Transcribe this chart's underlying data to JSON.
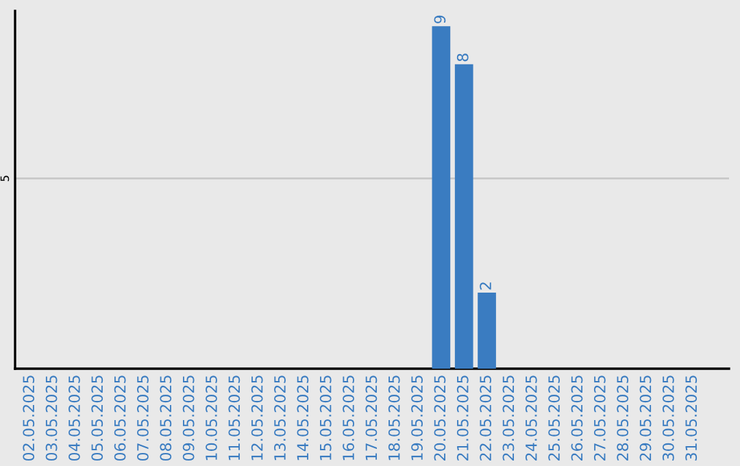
{
  "chart_data": {
    "type": "bar",
    "categories": [
      "02.05.2025",
      "03.05.2025",
      "04.05.2025",
      "05.05.2025",
      "06.05.2025",
      "07.05.2025",
      "08.05.2025",
      "09.05.2025",
      "10.05.2025",
      "11.05.2025",
      "12.05.2025",
      "13.05.2025",
      "14.05.2025",
      "15.05.2025",
      "16.05.2025",
      "17.05.2025",
      "18.05.2025",
      "19.05.2025",
      "20.05.2025",
      "21.05.2025",
      "22.05.2025",
      "23.05.2025",
      "24.05.2025",
      "25.05.2025",
      "26.05.2025",
      "27.05.2025",
      "28.05.2025",
      "29.05.2025",
      "30.05.2025",
      "31.05.2025"
    ],
    "values": [
      null,
      null,
      null,
      null,
      null,
      null,
      null,
      null,
      null,
      null,
      null,
      null,
      null,
      null,
      null,
      null,
      null,
      null,
      9,
      8,
      2,
      null,
      null,
      null,
      null,
      null,
      null,
      null,
      null,
      null
    ],
    "data_labels": true,
    "color": "#3a7cc1",
    "ylim": [
      0,
      9.4
    ],
    "yticks": [
      5
    ],
    "grid": "y",
    "legend": false
  }
}
